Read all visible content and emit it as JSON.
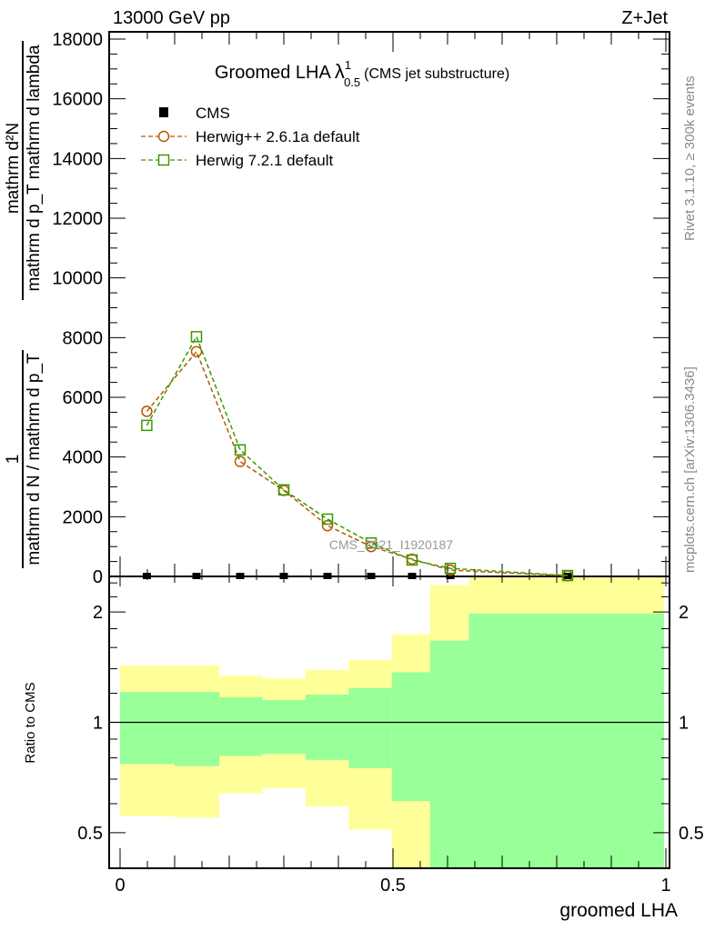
{
  "header": {
    "left": "13000 GeV pp",
    "right": "Z+Jet"
  },
  "side_text": {
    "rivet": "Rivet 3.1.10, ≥ 300k events",
    "mcplots": "mcplots.cern.ch [arXiv:1306.3436]"
  },
  "watermark": "CMS_2021_I1920187",
  "chart_data": [
    {
      "type": "line",
      "title": "Groomed LHA",
      "title_symbol": "λ",
      "title_sup": "1",
      "title_sub": "0.5",
      "title_suffix": "(CMS jet substructure)",
      "ylabel_num": "mathrm d²N",
      "ylabel_den": "mathrm d p_T mathrm d lambda",
      "ylabel_num2": "1",
      "ylabel_den2": "mathrm d N / mathrm d p_T",
      "ylim": [
        0,
        18000
      ],
      "yticks": [
        0,
        2000,
        4000,
        6000,
        8000,
        10000,
        12000,
        14000,
        16000,
        18000
      ],
      "ytick_labels": [
        "0",
        "2000",
        "4000",
        "6000",
        "8000",
        "10000",
        "12000",
        "14000",
        "16000",
        "18000"
      ],
      "xlim": [
        0,
        1
      ],
      "x": [
        0.049,
        0.14,
        0.22,
        0.3,
        0.38,
        0.46,
        0.535,
        0.605,
        0.82
      ],
      "legend_placement": "top-left",
      "series": [
        {
          "name": "CMS",
          "color": "#000000",
          "marker": "filled-square",
          "values": [
            0,
            0,
            0,
            0,
            0,
            0,
            0,
            0,
            0
          ]
        },
        {
          "name": "Herwig++ 2.6.1a default",
          "color": "#b35a00",
          "marker": "open-circle",
          "values": [
            5530,
            7530,
            3850,
            2880,
            1700,
            1000,
            580,
            210,
            20
          ]
        },
        {
          "name": "Herwig 7.2.1 default",
          "color": "#3a9a00",
          "marker": "open-square",
          "values": [
            5060,
            8030,
            4240,
            2900,
            1920,
            1120,
            550,
            270,
            30
          ]
        }
      ]
    },
    {
      "type": "area",
      "ylabel": "Ratio to CMS",
      "xlabel": "groomed LHA",
      "yscale": "log",
      "ylim": [
        0.4,
        2.5
      ],
      "yticks": [
        0.5,
        1,
        2
      ],
      "ytick_labels": [
        "0.5",
        "1",
        "2"
      ],
      "xticks": [
        0,
        0.5,
        1
      ],
      "xtick_labels": [
        "0",
        "0.5",
        "1"
      ],
      "bin_edges": [
        0,
        0.1,
        0.182,
        0.261,
        0.34,
        0.419,
        0.498,
        0.568,
        0.639,
        1.0
      ],
      "band_outer": {
        "color": "#ffff99",
        "upper": [
          1.43,
          1.43,
          1.34,
          1.32,
          1.39,
          1.48,
          1.74,
          2.37,
          2.6
        ],
        "lower": [
          0.555,
          0.55,
          0.64,
          0.66,
          0.59,
          0.51,
          0.3,
          0.3,
          0.3
        ]
      },
      "band_inner": {
        "color": "#99ff99",
        "upper": [
          1.21,
          1.21,
          1.17,
          1.15,
          1.19,
          1.24,
          1.37,
          1.67,
          1.98
        ],
        "lower": [
          0.77,
          0.76,
          0.81,
          0.82,
          0.79,
          0.75,
          0.61,
          0.3,
          0.3
        ]
      },
      "reference": 1
    }
  ]
}
